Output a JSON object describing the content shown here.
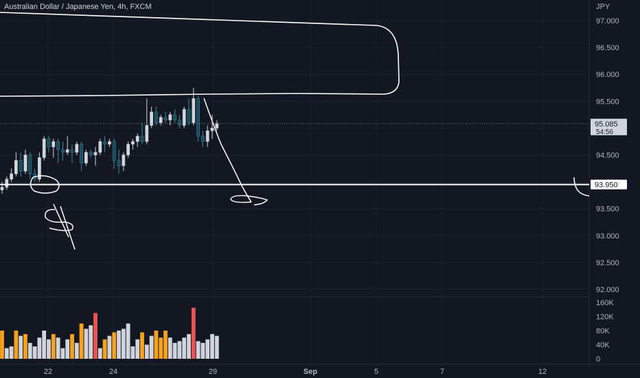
{
  "chart_data": {
    "type": "candlestick",
    "title": "Australian Dollar / Japanese Yen, 4h, FXCM",
    "currency_label": "JPY",
    "price_axis": {
      "ylim": [
        91.9,
        97.3
      ],
      "ticks": [
        "97.000",
        "96.500",
        "96.000",
        "95.500",
        "95.000",
        "94.500",
        "94.000",
        "93.500",
        "93.000",
        "92.500",
        "92.000"
      ]
    },
    "current_price": {
      "value": "95.085",
      "countdown": "54:56"
    },
    "horizontal_line": {
      "value": "93.950",
      "label": "93.950"
    },
    "volume_axis": {
      "ylim": [
        0,
        160000
      ],
      "ticks": [
        "160K",
        "120K",
        "80K",
        "40K",
        "0"
      ]
    },
    "x_axis_labels": [
      {
        "label": "22",
        "bold": false
      },
      {
        "label": "24",
        "bold": false
      },
      {
        "label": "29",
        "bold": false
      },
      {
        "label": "Sep",
        "bold": true
      },
      {
        "label": "5",
        "bold": false
      },
      {
        "label": "7",
        "bold": false
      },
      {
        "label": "12",
        "bold": false
      }
    ],
    "candles": [
      {
        "o": 93.85,
        "h": 94.0,
        "l": 93.78,
        "c": 93.9,
        "v": 80000,
        "vc": "orange"
      },
      {
        "o": 93.9,
        "h": 94.1,
        "l": 93.85,
        "c": 94.05,
        "v": 30000,
        "vc": "gray"
      },
      {
        "o": 94.05,
        "h": 94.25,
        "l": 94.0,
        "c": 94.15,
        "v": 35000,
        "vc": "gray"
      },
      {
        "o": 94.15,
        "h": 94.55,
        "l": 94.1,
        "c": 94.4,
        "v": 80000,
        "vc": "orange"
      },
      {
        "o": 94.4,
        "h": 94.55,
        "l": 94.1,
        "c": 94.2,
        "v": 65000,
        "vc": "gray"
      },
      {
        "o": 94.2,
        "h": 94.6,
        "l": 94.15,
        "c": 94.5,
        "v": 70000,
        "vc": "orange"
      },
      {
        "o": 94.5,
        "h": 94.55,
        "l": 94.05,
        "c": 94.15,
        "v": 45000,
        "vc": "gray"
      },
      {
        "o": 94.15,
        "h": 94.25,
        "l": 94.0,
        "c": 94.05,
        "v": 35000,
        "vc": "gray"
      },
      {
        "o": 94.05,
        "h": 94.55,
        "l": 94.0,
        "c": 94.45,
        "v": 60000,
        "vc": "gray"
      },
      {
        "o": 94.45,
        "h": 94.85,
        "l": 94.4,
        "c": 94.8,
        "v": 80000,
        "vc": "gray"
      },
      {
        "o": 94.8,
        "h": 94.85,
        "l": 94.55,
        "c": 94.65,
        "v": 55000,
        "vc": "gray"
      },
      {
        "o": 94.65,
        "h": 94.8,
        "l": 94.45,
        "c": 94.75,
        "v": 70000,
        "vc": "orange"
      },
      {
        "o": 94.75,
        "h": 94.8,
        "l": 94.35,
        "c": 94.6,
        "v": 60000,
        "vc": "gray"
      },
      {
        "o": 94.6,
        "h": 94.75,
        "l": 94.4,
        "c": 94.55,
        "v": 30000,
        "vc": "gray"
      },
      {
        "o": 94.55,
        "h": 94.85,
        "l": 94.5,
        "c": 94.6,
        "v": 55000,
        "vc": "gray"
      },
      {
        "o": 94.6,
        "h": 94.7,
        "l": 94.35,
        "c": 94.55,
        "v": 70000,
        "vc": "orange"
      },
      {
        "o": 94.55,
        "h": 94.75,
        "l": 94.5,
        "c": 94.7,
        "v": 45000,
        "vc": "gray"
      },
      {
        "o": 94.7,
        "h": 94.75,
        "l": 94.2,
        "c": 94.35,
        "v": 100000,
        "vc": "orange"
      },
      {
        "o": 94.35,
        "h": 94.6,
        "l": 94.3,
        "c": 94.55,
        "v": 85000,
        "vc": "gray"
      },
      {
        "o": 94.55,
        "h": 94.6,
        "l": 94.45,
        "c": 94.5,
        "v": 95000,
        "vc": "gray"
      },
      {
        "o": 94.5,
        "h": 94.65,
        "l": 94.3,
        "c": 94.55,
        "v": 130000,
        "vc": "red"
      },
      {
        "o": 94.55,
        "h": 94.8,
        "l": 94.5,
        "c": 94.75,
        "v": 30000,
        "vc": "gray"
      },
      {
        "o": 94.75,
        "h": 94.85,
        "l": 94.55,
        "c": 94.7,
        "v": 55000,
        "vc": "orange"
      },
      {
        "o": 94.7,
        "h": 94.8,
        "l": 94.65,
        "c": 94.75,
        "v": 65000,
        "vc": "gray"
      },
      {
        "o": 94.75,
        "h": 94.8,
        "l": 94.25,
        "c": 94.4,
        "v": 75000,
        "vc": "orange"
      },
      {
        "o": 94.4,
        "h": 94.6,
        "l": 94.15,
        "c": 94.3,
        "v": 80000,
        "vc": "gray"
      },
      {
        "o": 94.3,
        "h": 94.55,
        "l": 94.2,
        "c": 94.5,
        "v": 85000,
        "vc": "gray"
      },
      {
        "o": 94.5,
        "h": 94.75,
        "l": 94.45,
        "c": 94.7,
        "v": 100000,
        "vc": "gray"
      },
      {
        "o": 94.7,
        "h": 94.8,
        "l": 94.6,
        "c": 94.75,
        "v": 35000,
        "vc": "gray"
      },
      {
        "o": 94.75,
        "h": 94.9,
        "l": 94.65,
        "c": 94.85,
        "v": 55000,
        "vc": "gray"
      },
      {
        "o": 94.85,
        "h": 95.1,
        "l": 94.7,
        "c": 94.75,
        "v": 75000,
        "vc": "orange"
      },
      {
        "o": 94.75,
        "h": 95.55,
        "l": 94.7,
        "c": 95.05,
        "v": 40000,
        "vc": "gray"
      },
      {
        "o": 95.05,
        "h": 95.4,
        "l": 95.0,
        "c": 95.3,
        "v": 65000,
        "vc": "gray"
      },
      {
        "o": 95.3,
        "h": 95.4,
        "l": 95.05,
        "c": 95.1,
        "v": 80000,
        "vc": "orange"
      },
      {
        "o": 95.1,
        "h": 95.25,
        "l": 95.05,
        "c": 95.2,
        "v": 60000,
        "vc": "orange"
      },
      {
        "o": 95.2,
        "h": 95.3,
        "l": 95.1,
        "c": 95.15,
        "v": 80000,
        "vc": "orange"
      },
      {
        "o": 95.15,
        "h": 95.3,
        "l": 95.05,
        "c": 95.25,
        "v": 60000,
        "vc": "gray"
      },
      {
        "o": 95.25,
        "h": 95.35,
        "l": 95.1,
        "c": 95.15,
        "v": 45000,
        "vc": "gray"
      },
      {
        "o": 95.15,
        "h": 95.25,
        "l": 95.0,
        "c": 95.05,
        "v": 50000,
        "vc": "gray"
      },
      {
        "o": 95.05,
        "h": 95.4,
        "l": 95.0,
        "c": 95.35,
        "v": 60000,
        "vc": "gray"
      },
      {
        "o": 95.35,
        "h": 95.55,
        "l": 95.05,
        "c": 95.1,
        "v": 70000,
        "vc": "gray"
      },
      {
        "o": 95.1,
        "h": 95.75,
        "l": 95.05,
        "c": 95.55,
        "v": 145000,
        "vc": "red"
      },
      {
        "o": 95.55,
        "h": 95.6,
        "l": 94.75,
        "c": 94.85,
        "v": 50000,
        "vc": "gray"
      },
      {
        "o": 94.85,
        "h": 94.95,
        "l": 94.65,
        "c": 94.75,
        "v": 45000,
        "vc": "gray"
      },
      {
        "o": 94.75,
        "h": 95.05,
        "l": 94.65,
        "c": 94.95,
        "v": 55000,
        "vc": "gray"
      },
      {
        "o": 94.95,
        "h": 95.25,
        "l": 94.8,
        "c": 95.0,
        "v": 70000,
        "vc": "gray"
      },
      {
        "o": 95.0,
        "h": 95.15,
        "l": 94.95,
        "c": 95.085,
        "v": 65000,
        "vc": "gray"
      }
    ]
  },
  "colors": {
    "background": "#131722",
    "grid": "#1e222d",
    "axis_text": "#b2b5be",
    "candle_up": "#d1d4dc",
    "candle_down": "#174a5a",
    "volume_gray": "#d1d4dc",
    "volume_orange": "#f7a21b",
    "volume_red": "#ef5350",
    "drawing": "#ffffff"
  }
}
